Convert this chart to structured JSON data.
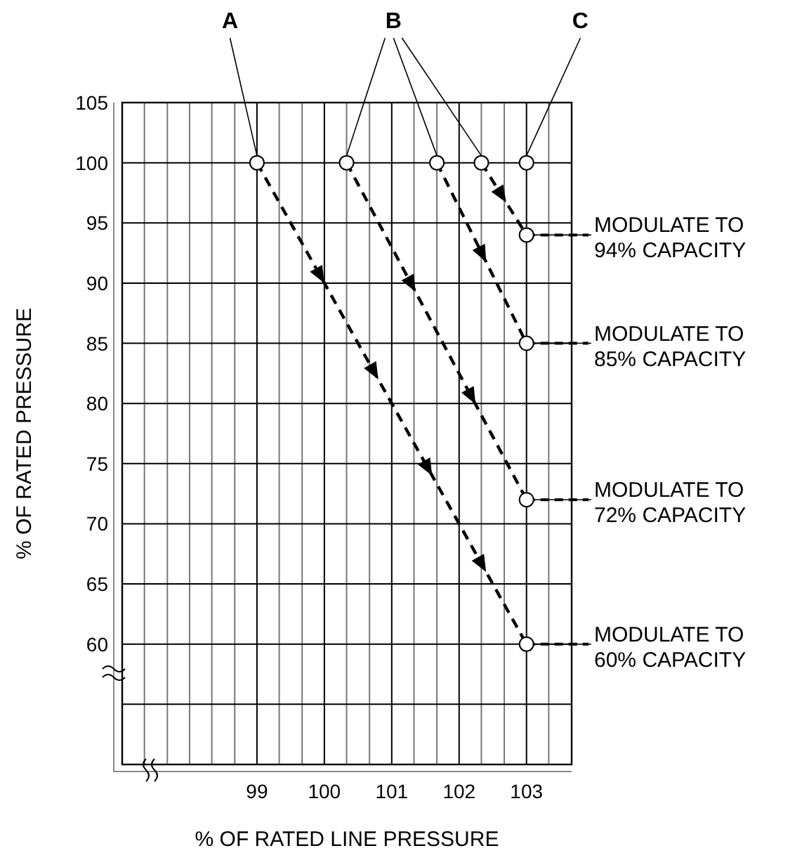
{
  "chart_data": {
    "type": "line",
    "xlabel": "% OF RATED LINE PRESSURE",
    "ylabel": "% OF RATED PRESSURE",
    "xlim": [
      97,
      103.67
    ],
    "ylim": [
      50,
      105
    ],
    "xticks": [
      {
        "value": 97.33,
        "label": null
      },
      {
        "value": 97.67,
        "label": null
      },
      {
        "value": 98,
        "label": null
      },
      {
        "value": 98.33,
        "label": null
      },
      {
        "value": 98.67,
        "label": null
      },
      99,
      {
        "value": 99.33,
        "label": null
      },
      {
        "value": 99.67,
        "label": null
      },
      100,
      {
        "value": 100.33,
        "label": null
      },
      {
        "value": 100.67,
        "label": null
      },
      101,
      {
        "value": 101.33,
        "label": null
      },
      {
        "value": 101.67,
        "label": null
      },
      102,
      {
        "value": 102.33,
        "label": null
      },
      {
        "value": 102.67,
        "label": null
      },
      103,
      {
        "value": 103.33,
        "label": null
      }
    ],
    "yticks": [
      {
        "value": 55,
        "label": null
      },
      60,
      65,
      70,
      75,
      80,
      85,
      90,
      95,
      100,
      105
    ],
    "grid": true,
    "marker": "circle",
    "line_style": "dashed",
    "series": [
      {
        "color": "#000000",
        "x": [
          99,
          103
        ],
        "values": [
          100,
          60
        ]
      },
      {
        "color": "#000000",
        "x": [
          100.33,
          103
        ],
        "values": [
          100,
          72
        ]
      },
      {
        "color": "#000000",
        "x": [
          101.67,
          103
        ],
        "values": [
          100,
          85
        ]
      },
      {
        "color": "#000000",
        "x": [
          102.33,
          103
        ],
        "values": [
          100,
          94
        ]
      },
      {
        "type": "scatter",
        "color": "#000000",
        "x": [
          103
        ],
        "values": [
          100
        ]
      }
    ],
    "annotations": [
      {
        "text": "A",
        "x": 99,
        "y": 100
      },
      {
        "text": "B",
        "x": 101.67,
        "y": 100
      },
      {
        "text": "C",
        "x": 103,
        "y": 100
      },
      {
        "text": "MODULATE TO 94% CAPACITY",
        "x": 103,
        "y": 94
      },
      {
        "text": "MODULATE TO 85% CAPACITY",
        "x": 103,
        "y": 85
      },
      {
        "text": "MODULATE TO 72% CAPACITY",
        "x": 103,
        "y": 72
      },
      {
        "text": "MODULATE TO 60% CAPACITY",
        "x": 103,
        "y": 60
      }
    ]
  }
}
